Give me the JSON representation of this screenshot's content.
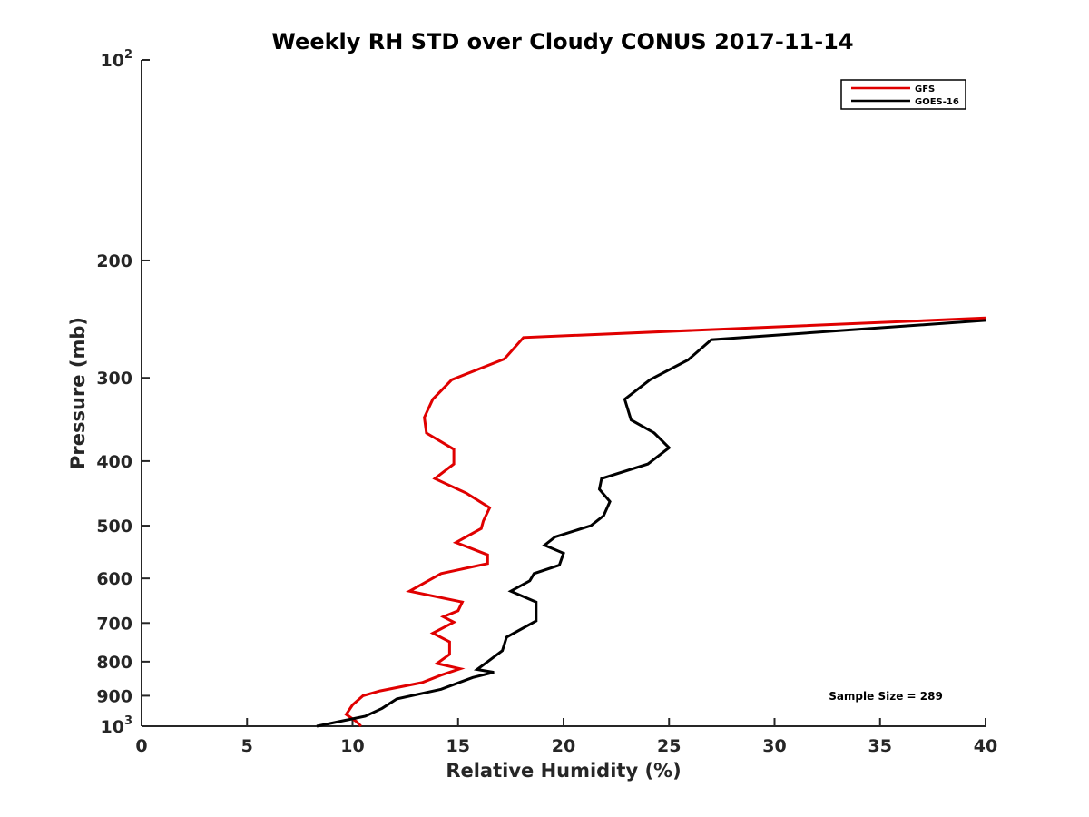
{
  "chart_data": {
    "type": "line",
    "title": "Weekly RH STD over Cloudy CONUS 2017-11-14",
    "xlabel": "Relative Humidity (%)",
    "ylabel": "Pressure (mb)",
    "xlim": [
      0,
      40
    ],
    "ylim": [
      100,
      1000
    ],
    "y_scale": "log",
    "y_reversed": true,
    "x_ticks": [
      "0",
      "5",
      "10",
      "15",
      "20",
      "25",
      "30",
      "35",
      "40"
    ],
    "x_tick_values": [
      0,
      5,
      10,
      15,
      20,
      25,
      30,
      35,
      40
    ],
    "y_ticks": [
      {
        "value": 100,
        "base": "10",
        "exp": "2"
      },
      {
        "value": 200,
        "label": "200"
      },
      {
        "value": 300,
        "label": "300"
      },
      {
        "value": 400,
        "label": "400"
      },
      {
        "value": 500,
        "label": "500"
      },
      {
        "value": 600,
        "label": "600"
      },
      {
        "value": 700,
        "label": "700"
      },
      {
        "value": 800,
        "label": "800"
      },
      {
        "value": 900,
        "label": "900"
      },
      {
        "value": 1000,
        "base": "10",
        "exp": "3"
      }
    ],
    "legend_position": "top-right",
    "annotation": "Sample Size = 289",
    "series": [
      {
        "name": "GFS",
        "color": "#e00000",
        "points": [
          [
            40.0,
            244
          ],
          [
            18.1,
            261
          ],
          [
            17.2,
            281
          ],
          [
            14.7,
            302
          ],
          [
            13.8,
            323
          ],
          [
            13.4,
            344
          ],
          [
            13.5,
            363
          ],
          [
            14.8,
            384
          ],
          [
            14.8,
            404
          ],
          [
            13.9,
            425
          ],
          [
            15.4,
            447
          ],
          [
            16.5,
            470
          ],
          [
            16.2,
            492
          ],
          [
            16.1,
            505
          ],
          [
            14.9,
            530
          ],
          [
            16.4,
            553
          ],
          [
            16.4,
            570
          ],
          [
            14.2,
            590
          ],
          [
            12.7,
            627
          ],
          [
            15.2,
            651
          ],
          [
            15.0,
            671
          ],
          [
            14.3,
            685
          ],
          [
            14.8,
            698
          ],
          [
            13.8,
            725
          ],
          [
            14.6,
            747
          ],
          [
            14.6,
            780
          ],
          [
            14.0,
            805
          ],
          [
            15.1,
            820
          ],
          [
            14.2,
            838
          ],
          [
            13.3,
            860
          ],
          [
            11.3,
            885
          ],
          [
            10.5,
            900
          ],
          [
            10.0,
            929
          ],
          [
            9.7,
            960
          ],
          [
            10.2,
            985
          ],
          [
            10.4,
            1000
          ]
        ]
      },
      {
        "name": "GOES-16",
        "color": "#000000",
        "points": [
          [
            40.0,
            246
          ],
          [
            27.0,
            263
          ],
          [
            25.9,
            282
          ],
          [
            24.1,
            302
          ],
          [
            22.9,
            323
          ],
          [
            23.2,
            347
          ],
          [
            24.3,
            363
          ],
          [
            25.0,
            382
          ],
          [
            24.0,
            404
          ],
          [
            21.8,
            425
          ],
          [
            21.7,
            441
          ],
          [
            22.2,
            460
          ],
          [
            21.9,
            483
          ],
          [
            21.3,
            500
          ],
          [
            19.6,
            520
          ],
          [
            19.1,
            535
          ],
          [
            20.0,
            550
          ],
          [
            19.8,
            573
          ],
          [
            18.6,
            590
          ],
          [
            18.4,
            605
          ],
          [
            17.5,
            627
          ],
          [
            18.7,
            651
          ],
          [
            18.7,
            695
          ],
          [
            17.3,
            735
          ],
          [
            17.1,
            770
          ],
          [
            16.4,
            800
          ],
          [
            15.9,
            822
          ],
          [
            16.7,
            830
          ],
          [
            15.7,
            845
          ],
          [
            14.2,
            880
          ],
          [
            12.1,
            910
          ],
          [
            11.4,
            940
          ],
          [
            10.6,
            966
          ],
          [
            8.3,
            1000
          ]
        ]
      }
    ]
  }
}
